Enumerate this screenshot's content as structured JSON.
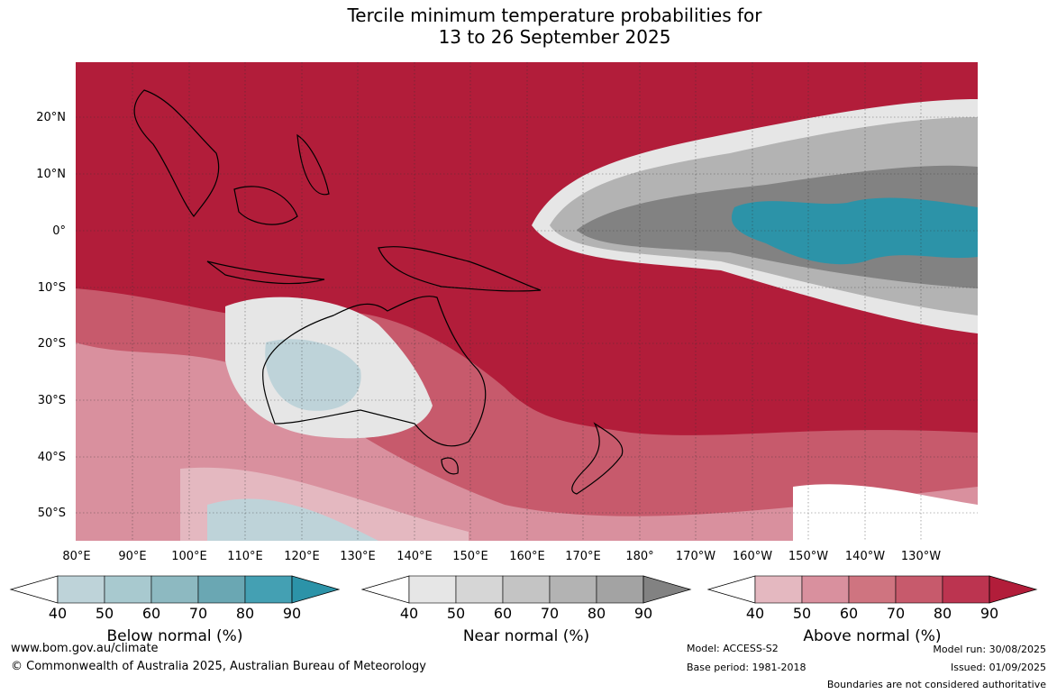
{
  "title": {
    "line1": "Tercile minimum temperature probabilities for",
    "line2": "13 to 26 September 2025"
  },
  "lat_labels": [
    "20°N",
    "10°N",
    "0°",
    "10°S",
    "20°S",
    "30°S",
    "40°S",
    "50°S"
  ],
  "lon_labels": [
    "80°E",
    "90°E",
    "100°E",
    "110°E",
    "120°E",
    "130°E",
    "140°E",
    "150°E",
    "160°E",
    "170°E",
    "180°",
    "170°W",
    "160°W",
    "150°W",
    "140°W",
    "130°W"
  ],
  "colorbars": [
    {
      "title": "Below normal (%)",
      "ticks": [
        "40",
        "50",
        "60",
        "70",
        "80",
        "90"
      ],
      "colors": [
        "#ffffff",
        "#bed3d9",
        "#a8c9cf",
        "#8db9c1",
        "#6aa7b3",
        "#44a0b3",
        "#2c93a8"
      ]
    },
    {
      "title": "Near normal (%)",
      "ticks": [
        "40",
        "50",
        "60",
        "70",
        "80",
        "90"
      ],
      "colors": [
        "#ffffff",
        "#e6e6e6",
        "#d6d6d6",
        "#c4c4c4",
        "#b3b3b3",
        "#a3a3a3",
        "#828282"
      ]
    },
    {
      "title": "Above normal (%)",
      "ticks": [
        "40",
        "50",
        "60",
        "70",
        "80",
        "90"
      ],
      "colors": [
        "#ffffff",
        "#e4b8c0",
        "#d9909e",
        "#cf7480",
        "#c75a6c",
        "#bc3450",
        "#b21d3a"
      ]
    }
  ],
  "footer": {
    "website": "www.bom.gov.au/climate",
    "copyright": "© Commonwealth of Australia 2025, Australian Bureau of Meteorology",
    "model": "Model: ACCESS-S2",
    "base_period": "Base period: 1981-2018",
    "model_run": "Model run: 30/08/2025",
    "issued": "Issued: 01/09/2025",
    "disclaimer": "Boundaries are not considered authoritative"
  }
}
